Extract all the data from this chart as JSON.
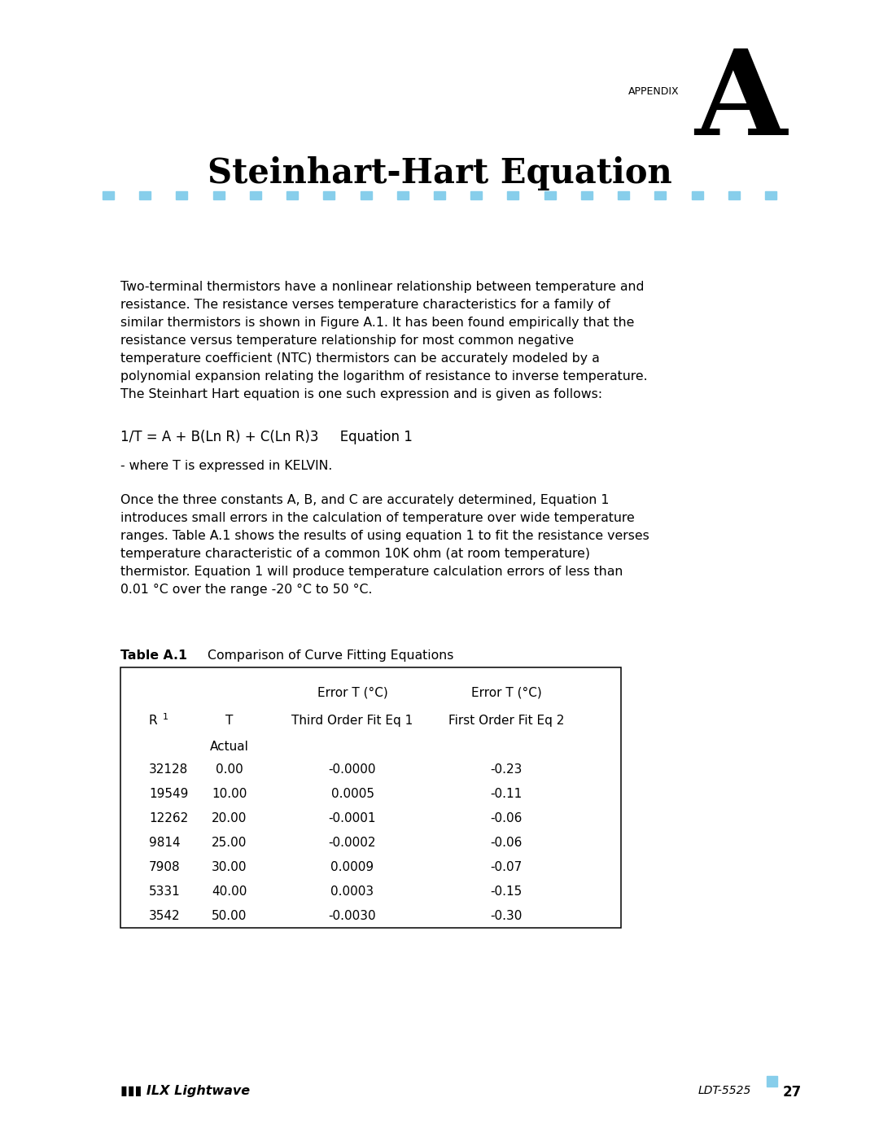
{
  "bg_color": "#ffffff",
  "appendix_label": "APPENDIX",
  "appendix_letter": "A",
  "title": "Steinhart-Hart Equation",
  "dot_color": "#87CEEB",
  "num_dots": 19,
  "body_text_1": "Two-terminal thermistors have a nonlinear relationship between temperature and\nresistance. The resistance verses temperature characteristics for a family of\nsimilar thermistors is shown in Figure A.1. It has been found empirically that the\nresistance versus temperature relationship for most common negative\ntemperature coefficient (NTC) thermistors can be accurately modeled by a\npolynomial expansion relating the logarithm of resistance to inverse temperature.\nThe Steinhart Hart equation is one such expression and is given as follows:",
  "equation_text": "1/T = A + B(Ln R) + C(Ln R)3     Equation 1",
  "kelvin_note": "- where T is expressed in KELVIN.",
  "body_text_2": "Once the three constants A, B, and C are accurately determined, Equation 1\nintroduces small errors in the calculation of temperature over wide temperature\nranges. Table A.1 shows the results of using equation 1 to fit the resistance verses\ntemperature characteristic of a common 10K ohm (at room temperature)\nthermistor. Equation 1 will produce temperature calculation errors of less than\n0.01 °C over the range -20 °C to 50 °C.",
  "table_caption_bold": "Table A.1",
  "table_caption_normal": "  Comparison of Curve Fitting Equations",
  "table_hdr1_col3": "Error T (°C)",
  "table_hdr1_col4": "Error T (°C)",
  "table_hdr2_col1r": "R",
  "table_hdr2_col1sup": "1",
  "table_hdr2_col2": "T",
  "table_hdr2_col2b": "Actual",
  "table_hdr2_col3": "Third Order Fit Eq 1",
  "table_hdr2_col4": "First Order Fit Eq 2",
  "table_data": [
    [
      "32128",
      "0.00",
      "-0.0000",
      "-0.23"
    ],
    [
      "19549",
      "10.00",
      "0.0005",
      "-0.11"
    ],
    [
      "12262",
      "20.00",
      "-0.0001",
      "-0.06"
    ],
    [
      "9814",
      "25.00",
      "-0.0002",
      "-0.06"
    ],
    [
      "7908",
      "30.00",
      "0.0009",
      "-0.07"
    ],
    [
      "5331",
      "40.00",
      "0.0003",
      "-0.15"
    ],
    [
      "3542",
      "50.00",
      "-0.0030",
      "-0.30"
    ]
  ],
  "footer_page_ref": "LDT-5525",
  "footer_page_num": "27",
  "footer_logo": "▮▮▮ ILX Lightwave"
}
